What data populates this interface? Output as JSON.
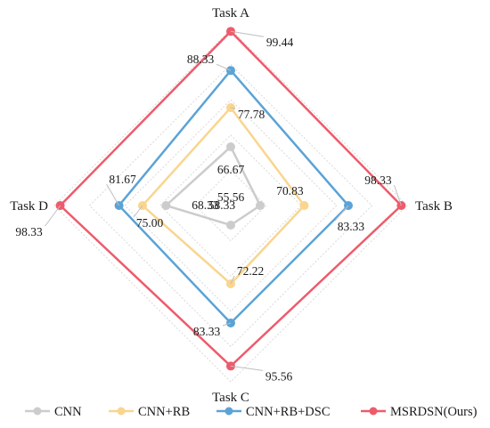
{
  "chart_data": {
    "type": "radar",
    "axes": [
      "Task A",
      "Task B",
      "Task C",
      "Task D"
    ],
    "range": [
      50,
      100
    ],
    "grid": true,
    "legend_position": "bottom",
    "series": [
      {
        "name": "CNN",
        "values": [
          66.67,
          58.33,
          55.56,
          68.33
        ],
        "color": "#cccccc"
      },
      {
        "name": "CNN+RB",
        "values": [
          77.78,
          70.83,
          72.22,
          75.0
        ],
        "color": "#f9d58e"
      },
      {
        "name": "CNN+RB+DSC",
        "values": [
          88.33,
          83.33,
          83.33,
          81.67
        ],
        "color": "#5ba3d6"
      },
      {
        "name": "MSRDSN(Ours)",
        "values": [
          99.44,
          98.33,
          95.56,
          98.33
        ],
        "color": "#ee5b6b"
      }
    ],
    "value_labels": [
      [
        "66.67",
        "58.33",
        "55.56",
        "68.33"
      ],
      [
        "77.78",
        "70.83",
        "72.22",
        "75.00"
      ],
      [
        "88.33",
        "83.33",
        "83.33",
        "81.67"
      ],
      [
        "99.44",
        "98.33",
        "95.56",
        "98.33"
      ]
    ]
  }
}
